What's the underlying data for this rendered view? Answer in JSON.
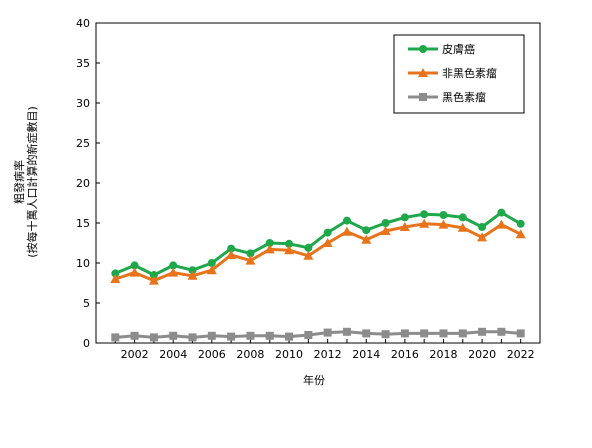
{
  "chart_data": {
    "type": "line",
    "title": "",
    "xlabel": "年份",
    "ylabel": "粗發病率",
    "ylabel_sub": "(按每十萬人口計算的新症數目)",
    "x": [
      2001,
      2002,
      2003,
      2004,
      2005,
      2006,
      2007,
      2008,
      2009,
      2010,
      2011,
      2012,
      2013,
      2014,
      2015,
      2016,
      2017,
      2018,
      2019,
      2020,
      2021,
      2022
    ],
    "xticks": [
      "2002",
      "2004",
      "2006",
      "2008",
      "2010",
      "2012",
      "2014",
      "2016",
      "2018",
      "2020",
      "2022"
    ],
    "yticks": [
      "0",
      "5",
      "10",
      "15",
      "20",
      "25",
      "30",
      "35",
      "40"
    ],
    "ylim": [
      0,
      40
    ],
    "grid": false,
    "legend_position": "top-right",
    "series": [
      {
        "name": "皮膚癌",
        "color": "#1fa84a",
        "marker": "circle",
        "values": [
          8.7,
          9.7,
          8.5,
          9.7,
          9.1,
          10.0,
          11.8,
          11.2,
          12.5,
          12.4,
          11.9,
          13.8,
          15.3,
          14.1,
          15.0,
          15.7,
          16.1,
          16.0,
          15.7,
          14.5,
          16.3,
          14.9
        ]
      },
      {
        "name": "非黑色素瘤",
        "color": "#e8731a",
        "marker": "triangle",
        "values": [
          8.0,
          8.8,
          7.8,
          8.8,
          8.4,
          9.1,
          11.0,
          10.3,
          11.7,
          11.6,
          10.9,
          12.5,
          13.9,
          12.9,
          14.0,
          14.5,
          14.9,
          14.8,
          14.4,
          13.2,
          14.8,
          13.6
        ]
      },
      {
        "name": "黑色素瘤",
        "color": "#8c8c8c",
        "marker": "square",
        "values": [
          0.7,
          0.9,
          0.7,
          0.9,
          0.7,
          0.9,
          0.8,
          0.9,
          0.9,
          0.8,
          1.0,
          1.3,
          1.4,
          1.2,
          1.1,
          1.2,
          1.2,
          1.2,
          1.2,
          1.4,
          1.4,
          1.2
        ]
      }
    ]
  }
}
